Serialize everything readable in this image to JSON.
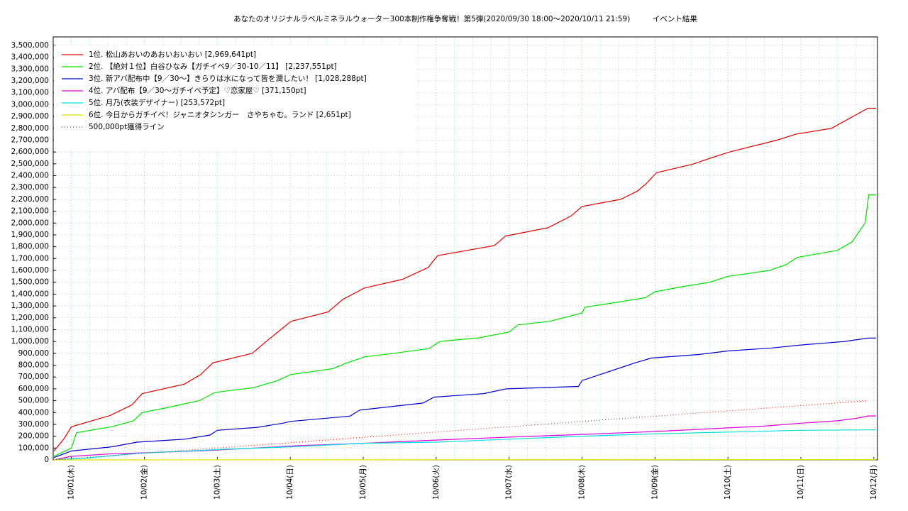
{
  "chart_data": {
    "type": "line",
    "title": "あなたのオリジナルラベルミネラルウォーター300本制作権争奪戦！第5弾(2020/09/30 18:00〜2020/10/11 21:59)　　　イベント結果",
    "xlim": [
      -0.25,
      11.05
    ],
    "xticks": [
      {
        "value": 0,
        "label": "10/01(木)"
      },
      {
        "value": 1,
        "label": "10/02(金)"
      },
      {
        "value": 2,
        "label": "10/03(土)"
      },
      {
        "value": 3,
        "label": "10/04(日)"
      },
      {
        "value": 4,
        "label": "10/05(月)"
      },
      {
        "value": 5,
        "label": "10/06(火)"
      },
      {
        "value": 6,
        "label": "10/07(水)"
      },
      {
        "value": 7,
        "label": "10/08(木)"
      },
      {
        "value": 8,
        "label": "10/09(金)"
      },
      {
        "value": 9,
        "label": "10/10(土)"
      },
      {
        "value": 10,
        "label": "10/11(日)"
      },
      {
        "value": 11,
        "label": "10/12(月)"
      }
    ],
    "ylim": [
      0,
      3500000
    ],
    "yticks": [
      0,
      {
        "value": 100000,
        "label": "100,000"
      },
      {
        "value": 200000,
        "label": "200,000"
      },
      {
        "value": 300000,
        "label": "300,000"
      },
      {
        "value": 400000,
        "label": "400,000"
      },
      {
        "value": 500000,
        "label": "500,000"
      },
      {
        "value": 600000,
        "label": "600,000"
      },
      {
        "value": 700000,
        "label": "700,000"
      },
      {
        "value": 800000,
        "label": "800,000"
      },
      {
        "value": 900000,
        "label": "900,000"
      },
      {
        "value": 1000000,
        "label": "1,000,000"
      },
      {
        "value": 1100000,
        "label": "1,100,000"
      },
      {
        "value": 1200000,
        "label": "1,200,000"
      },
      {
        "value": 1300000,
        "label": "1,300,000"
      },
      {
        "value": 1400000,
        "label": "1,400,000"
      },
      {
        "value": 1500000,
        "label": "1,500,000"
      },
      {
        "value": 1600000,
        "label": "1,600,000"
      },
      {
        "value": 1700000,
        "label": "1,700,000"
      },
      {
        "value": 1800000,
        "label": "1,800,000"
      },
      {
        "value": 1900000,
        "label": "1,900,000"
      },
      {
        "value": 2000000,
        "label": "2,000,000"
      },
      {
        "value": 2100000,
        "label": "2,100,000"
      },
      {
        "value": 2200000,
        "label": "2,200,000"
      },
      {
        "value": 2300000,
        "label": "2,300,000"
      },
      {
        "value": 2400000,
        "label": "2,400,000"
      },
      {
        "value": 2500000,
        "label": "2,500,000"
      },
      {
        "value": 2600000,
        "label": "2,600,000"
      },
      {
        "value": 2700000,
        "label": "2,700,000"
      },
      {
        "value": 2800000,
        "label": "2,800,000"
      },
      {
        "value": 2900000,
        "label": "2,900,000"
      },
      {
        "value": 3000000,
        "label": "3,000,000"
      },
      {
        "value": 3100000,
        "label": "3,100,000"
      },
      {
        "value": 3200000,
        "label": "3,200,000"
      },
      {
        "value": 3300000,
        "label": "3,300,000"
      },
      {
        "value": 3400000,
        "label": "3,400,000"
      },
      {
        "value": 3500000,
        "label": "3,500,000"
      }
    ],
    "grid": true,
    "legend": "upper left",
    "series": [
      {
        "name": "1位. 松山あおいのあおいおいおい [2,969,641pt]",
        "color": "#e00000",
        "x": [
          -0.24,
          -0.1,
          0.0,
          0.53,
          0.83,
          0.97,
          1.55,
          1.77,
          1.94,
          2.48,
          2.65,
          2.82,
          3.01,
          3.52,
          3.72,
          4.01,
          4.54,
          4.89,
          5.02,
          5.8,
          5.95,
          6.53,
          6.85,
          7.0,
          7.53,
          7.76,
          7.89,
          8.02,
          8.53,
          8.77,
          9.02,
          9.67,
          9.93,
          10.42,
          10.92,
          11.03
        ],
        "values": [
          75000,
          180000,
          280000,
          375000,
          465000,
          560000,
          640000,
          720000,
          820000,
          900000,
          990000,
          1075000,
          1170000,
          1250000,
          1355000,
          1450000,
          1525000,
          1625000,
          1725000,
          1810000,
          1890000,
          1960000,
          2060000,
          2140000,
          2200000,
          2270000,
          2340000,
          2425000,
          2500000,
          2550000,
          2600000,
          2700000,
          2750000,
          2800000,
          2969641,
          2969641
        ]
      },
      {
        "name": "2位. 【絶対１位】白谷ひなみ【ガチイベ9／30-10／11】 [2,237,551pt]",
        "color": "#00e000",
        "x": [
          -0.24,
          0.0,
          0.07,
          0.55,
          0.85,
          0.97,
          1.3,
          1.75,
          1.97,
          2.5,
          2.83,
          3.0,
          3.58,
          3.78,
          4.02,
          4.42,
          4.9,
          5.05,
          5.58,
          6.0,
          6.12,
          6.55,
          7.0,
          7.04,
          7.42,
          7.87,
          8.0,
          8.35,
          8.75,
          9.0,
          9.57,
          9.8,
          9.95,
          10.5,
          10.7,
          10.88,
          10.93,
          11.03
        ],
        "values": [
          30000,
          100000,
          230000,
          280000,
          330000,
          400000,
          440000,
          500000,
          570000,
          610000,
          670000,
          720000,
          770000,
          820000,
          870000,
          900000,
          940000,
          1000000,
          1030000,
          1080000,
          1140000,
          1170000,
          1240000,
          1290000,
          1325000,
          1370000,
          1420000,
          1460000,
          1500000,
          1550000,
          1600000,
          1650000,
          1710000,
          1770000,
          1840000,
          2000000,
          2237551,
          2237551
        ]
      },
      {
        "name": "3位. 新アバ配布中【9／30〜】きらりは水になって皆を潤したい！ [1,028,288pt]",
        "color": "#0000d0",
        "x": [
          -0.24,
          0.0,
          0.55,
          0.9,
          1.55,
          1.9,
          2.0,
          2.55,
          2.9,
          3.0,
          3.82,
          3.95,
          4.82,
          4.97,
          5.65,
          5.96,
          6.95,
          7.0,
          7.73,
          7.95,
          8.6,
          9.0,
          9.6,
          10.0,
          10.4,
          10.6,
          10.92,
          11.03
        ],
        "values": [
          20000,
          75000,
          110000,
          150000,
          175000,
          210000,
          250000,
          275000,
          310000,
          325000,
          370000,
          420000,
          480000,
          530000,
          560000,
          600000,
          620000,
          670000,
          820000,
          860000,
          890000,
          920000,
          945000,
          970000,
          990000,
          1000000,
          1028288,
          1028288
        ]
      },
      {
        "name": "4位. アバ配布【9／30〜ガチイベ予定】♡恋家屋♡ [371,150pt]",
        "color": "#e000e0",
        "x": [
          -0.24,
          0.0,
          0.5,
          1.0,
          1.9,
          2.5,
          3.1,
          4.0,
          4.9,
          5.9,
          7.0,
          8.0,
          9.0,
          9.5,
          10.0,
          10.5,
          10.75,
          10.92,
          11.03
        ],
        "values": [
          0,
          30000,
          50000,
          60000,
          80000,
          100000,
          120000,
          140000,
          165000,
          190000,
          215000,
          240000,
          270000,
          285000,
          310000,
          330000,
          350000,
          371150,
          371150
        ]
      },
      {
        "name": "5位. 月乃(衣装デザイナー) [253,572pt]",
        "color": "#00e0e0",
        "x": [
          -0.24,
          0.2,
          0.9,
          2.1,
          3.0,
          4.0,
          5.0,
          6.0,
          7.0,
          8.0,
          9.0,
          10.0,
          10.92,
          11.03
        ],
        "values": [
          0,
          15000,
          55000,
          90000,
          110000,
          140000,
          150000,
          175000,
          200000,
          220000,
          235000,
          250000,
          253572,
          253572
        ]
      },
      {
        "name": "6位. 今日からガチイベ！ジャニオタシンガー　さやちゃむ。ランド [2,651pt]",
        "color": "#e0e000",
        "x": [
          -0.24,
          10.92,
          11.03
        ],
        "values": [
          0,
          2651,
          2651
        ]
      },
      {
        "name": "500,000pt獲得ライン",
        "color": "#e00000",
        "dashed": true,
        "x": [
          -0.25,
          10.92
        ],
        "values": [
          0,
          500000
        ]
      }
    ]
  }
}
